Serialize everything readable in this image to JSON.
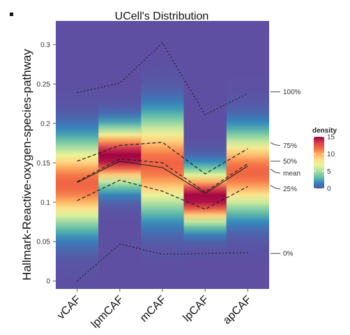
{
  "chart_data": {
    "type": "heatmap",
    "title": "UCell's Distribution",
    "ylabel": "Hallmark-Reactive-oxygen-species-pathway",
    "xlabel": "",
    "categories": [
      "vCAF",
      "lpmCAF",
      "mCAF",
      "lpCAF",
      "apCAF"
    ],
    "ylim": [
      -0.01,
      0.33
    ],
    "yticks": [
      0,
      0.05,
      0.1,
      0.15,
      0.2,
      0.25,
      0.3
    ],
    "ytick_labels": [
      "0",
      "0.05",
      "0.1",
      "0.15",
      "0.2",
      "0.25",
      "0.3"
    ],
    "density": [
      {
        "category": "vCAF",
        "center": 0.123,
        "spread": 0.035
      },
      {
        "category": "lpmCAF",
        "center": 0.158,
        "spread": 0.023
      },
      {
        "category": "mCAF",
        "center": 0.148,
        "spread": 0.038
      },
      {
        "category": "lpCAF",
        "center": 0.106,
        "spread": 0.022
      },
      {
        "category": "apCAF",
        "center": 0.138,
        "spread": 0.032
      }
    ],
    "quantile_lines": [
      {
        "name": "100%",
        "style": "dotted",
        "values": [
          0.239,
          0.251,
          0.302,
          0.211,
          0.238
        ]
      },
      {
        "name": "75%",
        "style": "dashed",
        "values": [
          0.152,
          0.172,
          0.176,
          0.136,
          0.168
        ]
      },
      {
        "name": "50%",
        "style": "dashed",
        "values": [
          0.126,
          0.155,
          0.15,
          0.113,
          0.149
        ]
      },
      {
        "name": "mean",
        "style": "solid",
        "values": [
          0.125,
          0.152,
          0.144,
          0.111,
          0.146
        ]
      },
      {
        "name": "25%",
        "style": "dashed",
        "values": [
          0.102,
          0.128,
          0.114,
          0.091,
          0.12
        ]
      },
      {
        "name": "0%",
        "style": "dotted",
        "values": [
          0.0,
          0.047,
          0.034,
          0.035,
          0.036
        ]
      }
    ],
    "annotations": [
      {
        "label": "100%",
        "value": 0.24
      },
      {
        "label": "75%",
        "value": 0.172
      },
      {
        "label": "50%",
        "value": 0.152
      },
      {
        "label": "mean",
        "value": 0.137
      },
      {
        "label": "25%",
        "value": 0.117
      },
      {
        "label": "0%",
        "value": 0.035
      }
    ],
    "legend": {
      "title": "density",
      "min": 0,
      "max": 15,
      "ticks": [
        0,
        5,
        10,
        15
      ],
      "tick_labels": [
        "0",
        "5",
        "10",
        "15"
      ],
      "position": "right"
    },
    "colorscale": [
      "#5e4fa2",
      "#3288bd",
      "#66c2a5",
      "#abdda4",
      "#e6f598",
      "#fee08b",
      "#fdae61",
      "#f46d43",
      "#d53e4f",
      "#9e0142"
    ]
  }
}
